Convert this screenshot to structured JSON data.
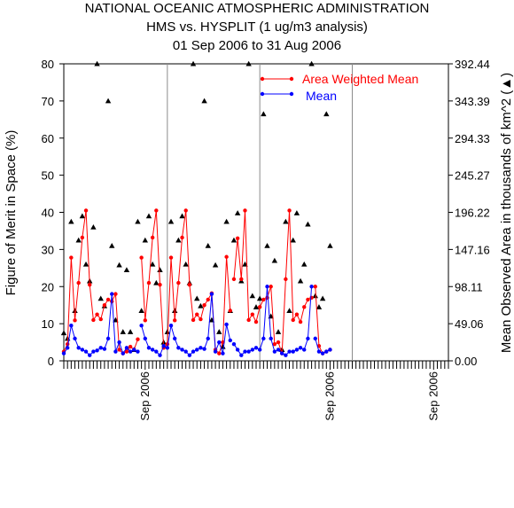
{
  "chart_data": {
    "type": "line",
    "title": "NATIONAL OCEANIC ATMOSPHERIC ADMINISTRATION",
    "subtitle": "HMS vs. HYSPLIT (1 ug/m3 analysis)",
    "date_range": "01 Sep 2006 to 31 Aug 2006",
    "ylabel_left": "Figure of Merit in Space (%)",
    "ylabel_right": "Mean Observed Area in thousands of km^2 (▲)",
    "x_tick_label": "Sep 2006",
    "ylim_left": [
      0,
      80
    ],
    "ylim_right": [
      0,
      392.44
    ],
    "yticks_left": [
      "0",
      "10",
      "20",
      "30",
      "40",
      "50",
      "60",
      "70",
      "80"
    ],
    "yticks_right": [
      "0.00",
      "49.06",
      "98.11",
      "147.16",
      "196.22",
      "245.27",
      "294.33",
      "343.39",
      "392.44"
    ],
    "n_points": 105,
    "panel_breaks": [
      28,
      53,
      78
    ],
    "sep_marks": [
      22,
      72,
      100
    ],
    "grid": false,
    "legend_position": "top-right",
    "series": [
      {
        "name": "Area Weighted Mean",
        "color": "#ff0000",
        "segments": [
          {
            "x": [
              0,
              1,
              2,
              3,
              4,
              5,
              6,
              7,
              8,
              9,
              10,
              11,
              12,
              13,
              14,
              15,
              16,
              17,
              18,
              19,
              20
            ],
            "y": [
              2.5,
              4.5,
              27.8,
              10.9,
              21.0,
              33.2,
              40.5,
              20.5,
              11.0,
              12.5,
              11.2,
              15.0,
              16.5,
              16.0,
              18.0,
              3.0,
              2.0,
              2.5,
              3.8,
              3.0,
              5.8
            ]
          },
          {
            "x": [
              21,
              22,
              23,
              24,
              25,
              26,
              27,
              28,
              29,
              30,
              31,
              32,
              33,
              34,
              35,
              36,
              37,
              38,
              39,
              40,
              41,
              42,
              43,
              44,
              45
            ],
            "y": [
              27.8,
              10.9,
              21.0,
              33.2,
              40.5,
              20.5,
              3.5,
              4.5,
              27.8,
              10.9,
              21.0,
              33.2,
              40.5,
              20.5,
              11.0,
              12.5,
              11.2,
              15.0,
              16.5,
              18.2,
              3.0,
              2.0,
              5.0,
              28.0,
              13.5
            ]
          },
          {
            "x": [
              46,
              47,
              48,
              49,
              50,
              51,
              52,
              53,
              54,
              55,
              56,
              57,
              58,
              59,
              60,
              61,
              62,
              63,
              64,
              65,
              66,
              67
            ],
            "y": [
              22.0,
              33.0,
              22.0,
              40.5,
              11.0,
              12.5,
              10.5,
              14.5,
              16.5,
              17.0,
              20.0,
              4.5,
              5.0,
              2.0,
              22.0,
              40.5,
              11.0,
              12.5,
              10.5,
              14.5,
              16.5,
              17.0
            ]
          },
          {
            "x": [
              68,
              69,
              70,
              71,
              72
            ],
            "y": [
              20.0,
              4.0,
              2.0,
              2.5,
              3.0
            ]
          }
        ]
      },
      {
        "name": "Mean",
        "color": "#0000ff",
        "segments": [
          {
            "x": [
              0,
              1,
              2,
              3,
              4,
              5,
              6,
              7,
              8,
              9,
              10,
              11,
              12,
              13,
              14,
              15,
              16,
              17,
              18,
              19,
              20
            ],
            "y": [
              2.0,
              3.5,
              9.5,
              6.0,
              3.5,
              3.0,
              2.5,
              1.5,
              2.5,
              2.8,
              3.5,
              3.2,
              6.0,
              18.0,
              2.5,
              5.0,
              2.0,
              3.5,
              2.5,
              3.0,
              2.5
            ]
          },
          {
            "x": [
              21,
              22,
              23,
              24,
              25,
              26,
              27,
              28,
              29,
              30,
              31,
              32,
              33,
              34,
              35,
              36,
              37,
              38,
              39,
              40,
              41,
              42,
              43,
              44,
              45
            ],
            "y": [
              9.5,
              6.0,
              3.5,
              3.0,
              2.5,
              1.5,
              4.0,
              3.5,
              9.5,
              6.0,
              3.5,
              3.0,
              2.5,
              1.5,
              2.5,
              3.0,
              3.5,
              3.2,
              6.0,
              18.0,
              2.5,
              5.0,
              2.0,
              9.8,
              5.5
            ]
          },
          {
            "x": [
              46,
              47,
              48,
              49,
              50,
              51,
              52,
              53,
              54,
              55,
              56,
              57,
              58,
              59,
              60,
              61,
              62,
              63,
              64,
              65,
              66,
              67
            ],
            "y": [
              4.5,
              3.0,
              1.5,
              2.5,
              2.5,
              3.0,
              3.5,
              3.0,
              6.0,
              20.0,
              6.0,
              2.5,
              3.0,
              2.0,
              1.5,
              2.5,
              2.5,
              3.0,
              3.5,
              3.0,
              6.0,
              20.0
            ]
          },
          {
            "x": [
              68,
              69,
              70,
              71,
              72
            ],
            "y": [
              6.0,
              2.5,
              2.0,
              2.5,
              3.0
            ]
          }
        ]
      },
      {
        "name": "Mean Observed Area",
        "axis": "right",
        "marker": "triangle",
        "color": "#000000",
        "x": [
          0,
          1,
          2,
          3,
          4,
          5,
          6,
          7,
          8,
          9,
          10,
          11,
          12,
          13,
          14,
          15,
          16,
          17,
          18,
          19,
          20,
          21,
          22,
          23,
          24,
          25,
          26,
          27,
          28,
          29,
          30,
          31,
          32,
          33,
          34,
          35,
          36,
          37,
          38,
          39,
          40,
          41,
          42,
          43,
          44,
          45,
          46,
          47,
          48,
          49,
          50,
          51,
          52,
          53,
          54,
          55,
          56,
          57,
          58,
          59,
          60,
          61,
          62,
          63,
          64,
          65,
          66,
          67,
          68,
          69,
          70,
          71,
          72
        ],
        "y": [
          7.5,
          6.0,
          37.5,
          13.5,
          32.5,
          39.0,
          26.0,
          21.5,
          36.0,
          80.0,
          16.8,
          14.8,
          70.0,
          31.0,
          11.0,
          25.8,
          7.8,
          24.5,
          7.8,
          3.0,
          37.5,
          13.5,
          32.5,
          39.0,
          26.0,
          21.0,
          24.5,
          5.0,
          7.8,
          37.5,
          13.5,
          32.5,
          39.0,
          26.0,
          21.0,
          80.0,
          16.8,
          14.8,
          70.0,
          31.0,
          11.0,
          25.8,
          7.8,
          3.8,
          37.5,
          13.5,
          32.5,
          39.8,
          21.5,
          26.0,
          80.0,
          17.5,
          14.5,
          16.8,
          66.5,
          31.0,
          12.0,
          27.0,
          7.8,
          3.0,
          37.5,
          13.5,
          32.5,
          39.8,
          21.5,
          26.0,
          36.8,
          80.0,
          17.5,
          14.5,
          16.8,
          66.5,
          31.0
        ]
      }
    ]
  }
}
